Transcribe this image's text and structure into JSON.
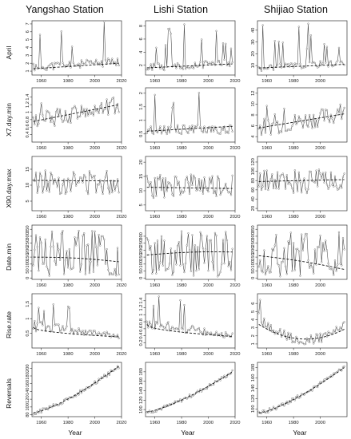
{
  "chart_data": {
    "type": "line",
    "columns": [
      "Yangshao Station",
      "Lishi Station",
      "Shijiao Station"
    ],
    "rows": [
      "April",
      "X7.day.min",
      "X90.day.max",
      "Date.min",
      "Rise.rate",
      "Reversals"
    ],
    "xlabel": "Year",
    "xlim": [
      1953,
      2020
    ],
    "panels": [
      [
        {
          "ylim": [
            0.5,
            7.4
          ],
          "yticks": [
            1,
            2,
            3,
            4,
            5,
            6,
            7
          ],
          "xticks": [
            1960,
            1980,
            2000,
            2020
          ],
          "shape": "spiky_up",
          "base": 1.5,
          "amp": 5.6,
          "trend": [
            1.3,
            2.0
          ],
          "seed": 11
        },
        {
          "ylim": [
            0.2,
            1.65
          ],
          "yticks": [
            0.4,
            0.6,
            0.8,
            1.0,
            1.2,
            1.4
          ],
          "xticks": [
            1960,
            1980,
            2000,
            2020
          ],
          "shape": "noisy_rise",
          "base": 0.8,
          "amp": 0.85,
          "trend": [
            0.75,
            1.2
          ],
          "seed": 12
        },
        {
          "ylim": [
            2,
            19
          ],
          "yticks": [
            5,
            10,
            15
          ],
          "xticks": [
            1960,
            1980,
            2000,
            2020
          ],
          "shape": "flat",
          "base": 11,
          "amp": 8,
          "trend": [
            11.5,
            11.3
          ],
          "seed": 13
        },
        {
          "ylim": [
            -10,
            380
          ],
          "yticks": [
            0,
            50,
            100,
            150,
            200,
            250,
            300,
            350
          ],
          "xticks": [
            1960,
            1980,
            2000,
            2020
          ],
          "shape": "bimodal",
          "base": 150,
          "amp": 350,
          "trend": [
            150,
            115
          ],
          "seed": 14
        },
        {
          "ylim": [
            0.0,
            1.85
          ],
          "yticks": [
            0.5,
            1.0,
            1.5
          ],
          "xticks": [
            1960,
            1980,
            2000,
            2020
          ],
          "shape": "decay_spiky",
          "base": 0.45,
          "amp": 1.2,
          "trend": [
            0.7,
            0.38
          ],
          "seed": 15
        },
        {
          "ylim": [
            75,
            215
          ],
          "yticks": [
            80,
            100,
            120,
            140,
            160,
            180,
            200
          ],
          "xticks": [
            1960,
            1980,
            2000,
            2020
          ],
          "shape": "rising",
          "base": 85,
          "amp": 120,
          "trend": [
            85,
            205
          ],
          "seed": 16
        }
      ],
      [
        {
          "ylim": [
            0.5,
            8.8
          ],
          "yticks": [
            2,
            4,
            6,
            8
          ],
          "xticks": [
            1960,
            1980,
            2000,
            2020
          ],
          "shape": "spiky_up",
          "base": 1.6,
          "amp": 6.8,
          "trend": [
            1.6,
            2.2
          ],
          "seed": 21
        },
        {
          "ylim": [
            0.2,
            2.2
          ],
          "yticks": [
            0.5,
            1.0,
            1.5,
            2.0
          ],
          "xticks": [
            1960,
            1980,
            2000,
            2020
          ],
          "shape": "flat_spike",
          "base": 0.7,
          "amp": 1.4,
          "trend": [
            0.6,
            0.78
          ],
          "seed": 22
        },
        {
          "ylim": [
            3,
            22
          ],
          "yticks": [
            5,
            10,
            15,
            20
          ],
          "xticks": [
            1960,
            1980,
            2000,
            2020
          ],
          "shape": "flat",
          "base": 11.5,
          "amp": 9,
          "trend": [
            11.2,
            10.8
          ],
          "seed": 23
        },
        {
          "ylim": [
            -10,
            380
          ],
          "yticks": [
            0,
            50,
            100,
            150,
            200,
            250,
            300
          ],
          "xticks": [
            1960,
            1980,
            2000,
            2020
          ],
          "shape": "bimodal",
          "base": 175,
          "amp": 350,
          "trend": [
            165,
            185
          ],
          "seed": 24
        },
        {
          "ylim": [
            0.05,
            1.6
          ],
          "yticks": [
            0.2,
            0.4,
            0.6,
            0.8,
            1.0,
            1.2,
            1.4
          ],
          "xticks": [
            1960,
            1980,
            2000,
            2020
          ],
          "shape": "decay_spiky",
          "base": 0.4,
          "amp": 1.1,
          "trend": [
            0.72,
            0.38
          ],
          "seed": 25
        },
        {
          "ylim": [
            85,
            200
          ],
          "yticks": [
            100,
            120,
            140,
            160,
            180
          ],
          "xticks": [
            1960,
            1980,
            2000,
            2020
          ],
          "shape": "rising",
          "base": 95,
          "amp": 90,
          "trend": [
            95,
            180
          ],
          "seed": 26
        }
      ],
      [
        {
          "ylim": [
            2,
            48
          ],
          "yticks": [
            10,
            20,
            30,
            40
          ],
          "xticks": [
            1960,
            1980,
            2000
          ],
          "shape": "spiky_up",
          "base": 8,
          "amp": 38,
          "trend": [
            8,
            11
          ],
          "seed": 31
        },
        {
          "ylim": [
            3,
            13
          ],
          "yticks": [
            4,
            6,
            8,
            10,
            12
          ],
          "xticks": [
            1960,
            1980,
            2000
          ],
          "shape": "noisy_rise",
          "base": 6,
          "amp": 6,
          "trend": [
            5.6,
            8.2
          ],
          "seed": 32
        },
        {
          "ylim": [
            15,
            132
          ],
          "yticks": [
            20,
            40,
            60,
            80,
            100,
            120
          ],
          "xticks": [
            1960,
            1980,
            2000
          ],
          "shape": "flat",
          "base": 78,
          "amp": 55,
          "trend": [
            78,
            82
          ],
          "seed": 33
        },
        {
          "ylim": [
            -10,
            380
          ],
          "yticks": [
            0,
            50,
            100,
            150,
            200,
            250,
            300,
            350
          ],
          "xticks": [
            1960,
            1980,
            2000
          ],
          "shape": "bimodal",
          "base": 160,
          "amp": 350,
          "trend": [
            160,
            60
          ],
          "seed": 34
        },
        {
          "ylim": [
            0.5,
            7.2
          ],
          "yticks": [
            1,
            2,
            3,
            4,
            5,
            6
          ],
          "xticks": [
            1960,
            1980,
            2000
          ],
          "shape": "u_shape",
          "base": 2,
          "amp": 4.8,
          "trend": [
            2.6,
            2.3
          ],
          "seed": 35
        },
        {
          "ylim": [
            85,
            190
          ],
          "yticks": [
            100,
            120,
            140,
            160,
            180
          ],
          "xticks": [
            1960,
            1980,
            2000
          ],
          "shape": "rising",
          "base": 92,
          "amp": 90,
          "trend": [
            92,
            180
          ],
          "seed": 36
        }
      ]
    ]
  }
}
